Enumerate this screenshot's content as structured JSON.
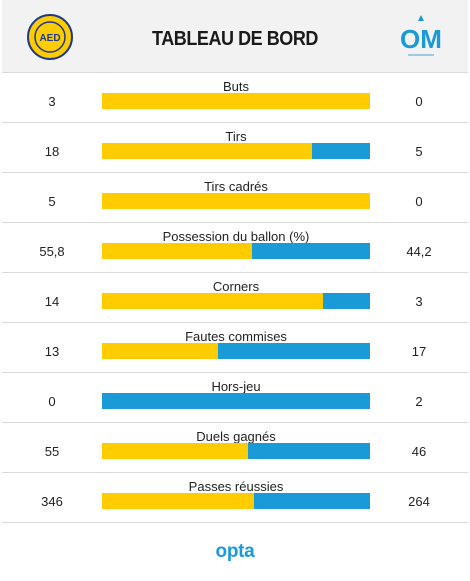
{
  "header": {
    "title": "TABLEAU DE BORD",
    "home_logo_text": "AED",
    "away_logo_text": "OM"
  },
  "colors": {
    "home": "#ffcc00",
    "away": "#1a9bd7",
    "header_bg": "#f2f2f2"
  },
  "stats": [
    {
      "label": "Buts",
      "home": "3",
      "away": "0",
      "home_share": 1.0
    },
    {
      "label": "Tirs",
      "home": "18",
      "away": "5",
      "home_share": 0.7826
    },
    {
      "label": "Tirs cadrés",
      "home": "5",
      "away": "0",
      "home_share": 1.0
    },
    {
      "label": "Possession du ballon (%)",
      "home": "55,8",
      "away": "44,2",
      "home_share": 0.558
    },
    {
      "label": "Corners",
      "home": "14",
      "away": "3",
      "home_share": 0.8235
    },
    {
      "label": "Fautes commises",
      "home": "13",
      "away": "17",
      "home_share": 0.4333
    },
    {
      "label": "Hors-jeu",
      "home": "0",
      "away": "2",
      "home_share": 0.0
    },
    {
      "label": "Duels gagnés",
      "home": "55",
      "away": "46",
      "home_share": 0.5446
    },
    {
      "label": "Passes réussies",
      "home": "346",
      "away": "264",
      "home_share": 0.5672
    }
  ],
  "footer": {
    "brand": "opta"
  }
}
